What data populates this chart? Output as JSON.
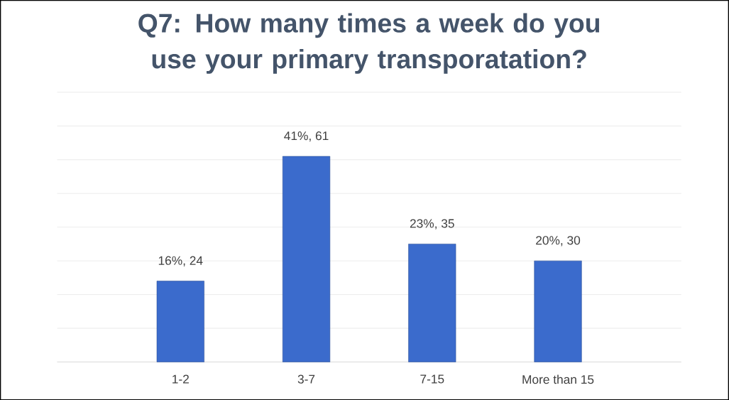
{
  "chart_data": {
    "type": "bar",
    "title": "Q7: How many times a week do you use your primary transporatation?",
    "categories": [
      "1-2",
      "3-7",
      "7-15",
      "More than 15"
    ],
    "values": [
      24,
      61,
      35,
      30
    ],
    "value_labels": [
      "16%, 24",
      "41%, 61",
      "23%, 35",
      "20%, 30"
    ],
    "color": "#3b6bcc",
    "ylim": [
      0,
      80
    ],
    "yticks": [
      {
        "value": 0,
        "label": null
      },
      {
        "value": 10,
        "label": null
      },
      {
        "value": 20,
        "label": null
      },
      {
        "value": 30,
        "label": null
      },
      {
        "value": 40,
        "label": null
      },
      {
        "value": 50,
        "label": null
      },
      {
        "value": 60,
        "label": null
      },
      {
        "value": 70,
        "label": null
      },
      {
        "value": 80,
        "label": null
      }
    ],
    "grid": "y",
    "tick_labels": "x"
  }
}
